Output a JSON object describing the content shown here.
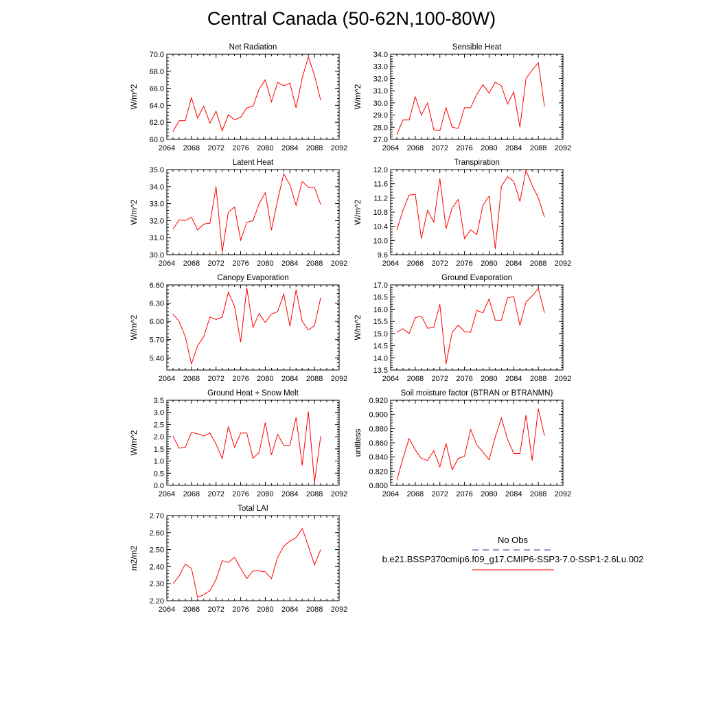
{
  "title": "Central Canada (50-62N,100-80W)",
  "legend": {
    "obs_label": "No Obs",
    "obs_color": "#2a2a8c",
    "model_label": "b.e21.BSSP370cmip6.f09_g17.CMIP6-SSP3-7.0-SSP1-2.6Lu.002",
    "model_color": "#ff0000"
  },
  "chart_data": [
    {
      "type": "line",
      "title": "Net Radiation",
      "ylabel": "W/m^2",
      "xlim": [
        2064,
        2092
      ],
      "ylim": [
        60,
        70
      ],
      "xticks": [
        "2064",
        "2068",
        "2072",
        "2076",
        "2080",
        "2084",
        "2088",
        "2092"
      ],
      "yticks": [
        "60.0",
        "62.0",
        "64.0",
        "66.0",
        "68.0",
        "70.0"
      ],
      "x": [
        2065,
        2066,
        2067,
        2068,
        2069,
        2070,
        2071,
        2072,
        2073,
        2074,
        2075,
        2076,
        2077,
        2078,
        2079,
        2080,
        2081,
        2082,
        2083,
        2084,
        2085,
        2086,
        2087,
        2088,
        2089
      ],
      "series": [
        {
          "values": [
            60.9,
            62.2,
            62.2,
            64.9,
            62.5,
            63.9,
            61.9,
            63.3,
            61.0,
            62.9,
            62.3,
            62.6,
            63.7,
            63.9,
            65.9,
            67.0,
            64.4,
            66.7,
            66.3,
            66.6,
            63.7,
            67.2,
            69.7,
            67.5,
            64.6
          ]
        }
      ]
    },
    {
      "type": "line",
      "title": "Sensible Heat",
      "ylabel": "W/m^2",
      "xlim": [
        2064,
        2092
      ],
      "ylim": [
        27,
        34
      ],
      "xticks": [
        "2064",
        "2068",
        "2072",
        "2076",
        "2080",
        "2084",
        "2088",
        "2092"
      ],
      "yticks": [
        "27.0",
        "28.0",
        "29.0",
        "30.0",
        "31.0",
        "32.0",
        "33.0",
        "34.0"
      ],
      "x": [
        2065,
        2066,
        2067,
        2068,
        2069,
        2070,
        2071,
        2072,
        2073,
        2074,
        2075,
        2076,
        2077,
        2078,
        2079,
        2080,
        2081,
        2082,
        2083,
        2084,
        2085,
        2086,
        2087,
        2088,
        2089
      ],
      "series": [
        {
          "values": [
            27.4,
            28.6,
            28.6,
            30.5,
            29.0,
            30.0,
            27.8,
            27.7,
            29.6,
            28.0,
            27.9,
            29.6,
            29.6,
            30.7,
            31.5,
            30.8,
            31.7,
            31.4,
            29.9,
            30.9,
            28.0,
            32.0,
            32.7,
            33.3,
            29.7
          ]
        }
      ]
    },
    {
      "type": "line",
      "title": "Latent Heat",
      "ylabel": "W/m^2",
      "xlim": [
        2064,
        2092
      ],
      "ylim": [
        30,
        35
      ],
      "xticks": [
        "2064",
        "2068",
        "2072",
        "2076",
        "2080",
        "2084",
        "2088",
        "2092"
      ],
      "yticks": [
        "30.0",
        "31.0",
        "32.0",
        "33.0",
        "34.0",
        "35.0"
      ],
      "x": [
        2065,
        2066,
        2067,
        2068,
        2069,
        2070,
        2071,
        2072,
        2073,
        2074,
        2075,
        2076,
        2077,
        2078,
        2079,
        2080,
        2081,
        2082,
        2083,
        2084,
        2085,
        2086,
        2087,
        2088,
        2089
      ],
      "series": [
        {
          "values": [
            31.5,
            32.05,
            32.0,
            32.2,
            31.45,
            31.8,
            31.85,
            34.0,
            30.15,
            32.5,
            32.8,
            30.85,
            31.9,
            32.0,
            33.0,
            33.65,
            31.45,
            33.2,
            34.75,
            34.1,
            32.9,
            34.3,
            33.95,
            33.95,
            32.95
          ]
        }
      ]
    },
    {
      "type": "line",
      "title": "Transpiration",
      "ylabel": "W/m^2",
      "xlim": [
        2064,
        2092
      ],
      "ylim": [
        9.6,
        12.0
      ],
      "xticks": [
        "2064",
        "2068",
        "2072",
        "2076",
        "2080",
        "2084",
        "2088",
        "2092"
      ],
      "yticks": [
        "9.6",
        "10.0",
        "10.4",
        "10.8",
        "11.2",
        "11.6",
        "12.0"
      ],
      "x": [
        2065,
        2066,
        2067,
        2068,
        2069,
        2070,
        2071,
        2072,
        2073,
        2074,
        2075,
        2076,
        2077,
        2078,
        2079,
        2080,
        2081,
        2082,
        2083,
        2084,
        2085,
        2086,
        2087,
        2088,
        2089
      ],
      "series": [
        {
          "values": [
            10.3,
            10.85,
            11.28,
            11.3,
            10.05,
            10.85,
            10.52,
            11.75,
            10.33,
            10.92,
            11.16,
            10.05,
            10.3,
            10.17,
            11.0,
            11.25,
            9.76,
            11.53,
            11.8,
            11.67,
            11.1,
            11.98,
            11.55,
            11.2,
            10.66
          ]
        }
      ]
    },
    {
      "type": "line",
      "title": "Canopy Evaporation",
      "ylabel": "W/m^2",
      "xlim": [
        2064,
        2092
      ],
      "ylim": [
        5.2,
        6.6
      ],
      "xticks": [
        "2064",
        "2068",
        "2072",
        "2076",
        "2080",
        "2084",
        "2088",
        "2092"
      ],
      "yticks": [
        "5.40",
        "5.70",
        "6.00",
        "6.30",
        "6.60"
      ],
      "x": [
        2065,
        2066,
        2067,
        2068,
        2069,
        2070,
        2071,
        2072,
        2073,
        2074,
        2075,
        2076,
        2077,
        2078,
        2079,
        2080,
        2081,
        2082,
        2083,
        2084,
        2085,
        2086,
        2087,
        2088,
        2089
      ],
      "series": [
        {
          "values": [
            6.12,
            6.0,
            5.75,
            5.3,
            5.6,
            5.75,
            6.07,
            6.03,
            6.07,
            6.48,
            6.25,
            5.66,
            6.55,
            5.9,
            6.13,
            5.98,
            6.12,
            6.16,
            6.45,
            5.92,
            6.52,
            6.0,
            5.86,
            5.93,
            6.39
          ]
        }
      ]
    },
    {
      "type": "line",
      "title": "Ground Evaporation",
      "ylabel": "W/m^2",
      "xlim": [
        2064,
        2092
      ],
      "ylim": [
        13.5,
        17.0
      ],
      "xticks": [
        "2064",
        "2068",
        "2072",
        "2076",
        "2080",
        "2084",
        "2088",
        "2092"
      ],
      "yticks": [
        "13.5",
        "14.0",
        "14.5",
        "15.0",
        "15.5",
        "16.0",
        "16.5",
        "17.0"
      ],
      "x": [
        2065,
        2066,
        2067,
        2068,
        2069,
        2070,
        2071,
        2072,
        2073,
        2074,
        2075,
        2076,
        2077,
        2078,
        2079,
        2080,
        2081,
        2082,
        2083,
        2084,
        2085,
        2086,
        2087,
        2088,
        2089
      ],
      "series": [
        {
          "values": [
            15.05,
            15.2,
            15.0,
            15.65,
            15.72,
            15.22,
            15.25,
            16.2,
            13.75,
            15.05,
            15.35,
            15.08,
            15.05,
            15.95,
            15.85,
            16.42,
            15.55,
            15.55,
            16.47,
            16.52,
            15.33,
            16.3,
            16.55,
            16.85,
            15.85
          ]
        }
      ]
    },
    {
      "type": "line",
      "title": "Ground Heat + Snow Melt",
      "ylabel": "W/m^2",
      "xlim": [
        2064,
        2092
      ],
      "ylim": [
        0.0,
        3.5
      ],
      "xticks": [
        "2064",
        "2068",
        "2072",
        "2076",
        "2080",
        "2084",
        "2088",
        "2092"
      ],
      "yticks": [
        "0.0",
        "0.5",
        "1.0",
        "1.5",
        "2.0",
        "2.5",
        "3.0",
        "3.5"
      ],
      "x": [
        2065,
        2066,
        2067,
        2068,
        2069,
        2070,
        2071,
        2072,
        2073,
        2074,
        2075,
        2076,
        2077,
        2078,
        2079,
        2080,
        2081,
        2082,
        2083,
        2084,
        2085,
        2086,
        2087,
        2088,
        2089
      ],
      "series": [
        {
          "values": [
            2.02,
            1.53,
            1.57,
            2.18,
            2.12,
            2.03,
            2.15,
            1.7,
            1.1,
            2.42,
            1.57,
            2.15,
            2.15,
            1.12,
            1.35,
            2.58,
            1.25,
            2.1,
            1.65,
            1.65,
            2.8,
            0.82,
            3.03,
            0.12,
            2.02
          ]
        }
      ]
    },
    {
      "type": "line",
      "title": "Soil moisture factor (BTRAN or BTRANMN)",
      "ylabel": "unitless",
      "xlim": [
        2064,
        2092
      ],
      "ylim": [
        0.8,
        0.92
      ],
      "xticks": [
        "2064",
        "2068",
        "2072",
        "2076",
        "2080",
        "2084",
        "2088",
        "2092"
      ],
      "yticks": [
        "0.800",
        "0.820",
        "0.840",
        "0.860",
        "0.880",
        "0.900",
        "0.920"
      ],
      "x": [
        2065,
        2066,
        2067,
        2068,
        2069,
        2070,
        2071,
        2072,
        2073,
        2074,
        2075,
        2076,
        2077,
        2078,
        2079,
        2080,
        2081,
        2082,
        2083,
        2084,
        2085,
        2086,
        2087,
        2088,
        2089
      ],
      "series": [
        {
          "values": [
            0.807,
            0.838,
            0.866,
            0.85,
            0.838,
            0.835,
            0.849,
            0.826,
            0.859,
            0.822,
            0.838,
            0.841,
            0.879,
            0.857,
            0.847,
            0.836,
            0.868,
            0.895,
            0.865,
            0.845,
            0.845,
            0.899,
            0.835,
            0.908,
            0.87
          ]
        }
      ]
    },
    {
      "type": "line",
      "title": "Total LAI",
      "ylabel": "m2/m2",
      "xlim": [
        2064,
        2092
      ],
      "ylim": [
        2.2,
        2.7
      ],
      "xticks": [
        "2064",
        "2068",
        "2072",
        "2076",
        "2080",
        "2084",
        "2088",
        "2092"
      ],
      "yticks": [
        "2.20",
        "2.30",
        "2.40",
        "2.50",
        "2.60",
        "2.70"
      ],
      "x": [
        2065,
        2066,
        2067,
        2068,
        2069,
        2070,
        2071,
        2072,
        2073,
        2074,
        2075,
        2076,
        2077,
        2078,
        2079,
        2080,
        2081,
        2082,
        2083,
        2084,
        2085,
        2086,
        2087,
        2088,
        2089
      ],
      "series": [
        {
          "values": [
            2.3,
            2.345,
            2.415,
            2.39,
            2.22,
            2.235,
            2.26,
            2.325,
            2.435,
            2.425,
            2.455,
            2.39,
            2.33,
            2.375,
            2.375,
            2.37,
            2.33,
            2.455,
            2.52,
            2.55,
            2.57,
            2.625,
            2.52,
            2.41,
            2.5
          ]
        }
      ]
    }
  ]
}
